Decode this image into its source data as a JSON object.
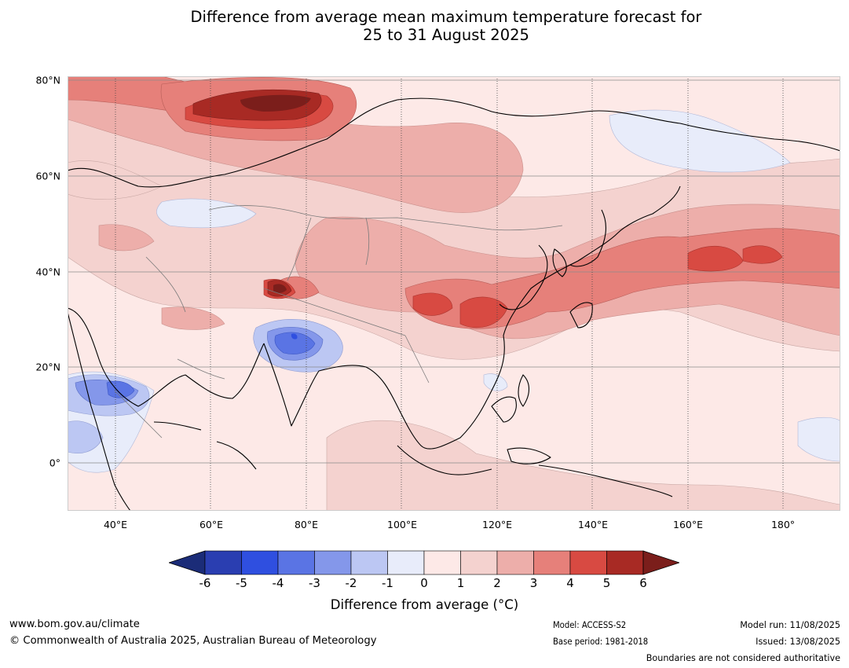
{
  "title_line1": "Difference from average mean maximum temperature forecast for",
  "title_line2": "25 to 31 August 2025",
  "map": {
    "lat_labels": [
      "80°N",
      "60°N",
      "40°N",
      "20°N",
      "0°"
    ],
    "lon_labels": [
      "40°E",
      "60°E",
      "80°E",
      "100°E",
      "120°E",
      "140°E",
      "160°E",
      "180°"
    ],
    "extent": {
      "lon_min": 30,
      "lon_max": 192,
      "lat_min": -10,
      "lat_max": 80
    }
  },
  "colorbar": {
    "ticks": [
      "-6",
      "-5",
      "-4",
      "-3",
      "-2",
      "-1",
      "0",
      "1",
      "2",
      "3",
      "4",
      "5",
      "6"
    ],
    "colors": [
      "#1b2c78",
      "#2a3eb1",
      "#2f4fe0",
      "#5a74e4",
      "#8497ea",
      "#bcc7f3",
      "#e8ecfa",
      "#fde9e7",
      "#f4d2cf",
      "#edaeaa",
      "#e6807a",
      "#d84a42",
      "#a82a24",
      "#7b1e1b"
    ],
    "label": "Difference from average (°C)"
  },
  "footer": {
    "website": "www.bom.gov.au/climate",
    "copyright": "© Commonwealth of Australia 2025, Australian Bureau of Meteorology",
    "model": "Model: ACCESS-S2",
    "base_period": "Base period: 1981-2018",
    "model_run": "Model run: 11/08/2025",
    "issued": "Issued: 13/08/2025",
    "disclaimer": "Boundaries are not considered authoritative"
  }
}
